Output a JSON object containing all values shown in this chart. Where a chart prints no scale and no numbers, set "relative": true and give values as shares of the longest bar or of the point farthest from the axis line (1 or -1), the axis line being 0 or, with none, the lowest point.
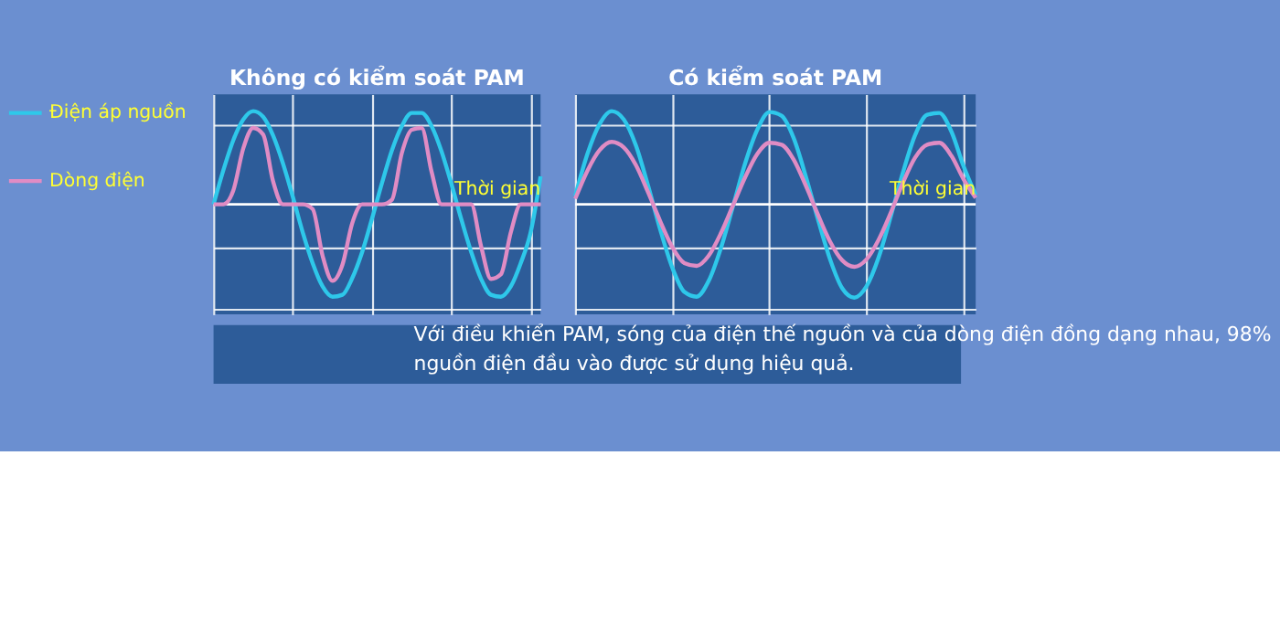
{
  "chart_data": [
    {
      "type": "line",
      "title": "Không có kiểm soát PAM",
      "xlabel": "Thời gian",
      "relative": true,
      "grid": true,
      "legend": "left",
      "categories": [
        null,
        null,
        null,
        null,
        null,
        null,
        null,
        null,
        null,
        null,
        null,
        null,
        null,
        null,
        null,
        null,
        null,
        null,
        null,
        null,
        null,
        null,
        null,
        null,
        null,
        null,
        null,
        null,
        null,
        null,
        null,
        null,
        null,
        null
      ],
      "series": [
        {
          "name": "Điện áp nguồn",
          "color": "#2ec8ea",
          "values": [
            0,
            0.37,
            0.69,
            0.91,
            1.0,
            0.94,
            0.74,
            0.44,
            0.08,
            -0.3,
            -0.63,
            -0.88,
            -0.99,
            -0.97,
            -0.79,
            -0.51,
            -0.15,
            0.23,
            0.58,
            0.84,
            0.98,
            0.98,
            0.84,
            0.57,
            0.22,
            -0.16,
            -0.51,
            -0.8,
            -0.97,
            -0.99,
            -0.88,
            -0.63,
            -0.3,
            0.3
          ]
        },
        {
          "name": "Dòng điện",
          "color": "#e08cc4",
          "values": [
            0,
            0,
            0.15,
            0.6,
            0.82,
            0.75,
            0.25,
            0,
            0,
            0,
            -0.05,
            -0.55,
            -0.82,
            -0.65,
            -0.2,
            0,
            0,
            0,
            0.05,
            0.55,
            0.8,
            0.82,
            0.35,
            0,
            0,
            0,
            0,
            -0.45,
            -0.8,
            -0.75,
            -0.3,
            0,
            0,
            0
          ]
        }
      ],
      "annotations": [
        "Với điều khiển PAM, sóng của điện thế nguồn và của dòng điện đồng dạng nhau, 98% nguồn điện đầu vào được sử dụng hiệu quả."
      ]
    },
    {
      "type": "line",
      "title": "Có kiểm soát PAM",
      "xlabel": "Thời gian",
      "relative": true,
      "grid": true,
      "categories": [
        null,
        null,
        null,
        null,
        null,
        null,
        null,
        null,
        null,
        null,
        null,
        null,
        null,
        null,
        null,
        null,
        null,
        null,
        null,
        null,
        null,
        null,
        null,
        null,
        null,
        null,
        null,
        null,
        null,
        null,
        null,
        null,
        null,
        null
      ],
      "series": [
        {
          "color": "#2ec8ea",
          "values": [
            0.09,
            0.54,
            0.86,
            1.0,
            0.91,
            0.63,
            0.2,
            -0.27,
            -0.68,
            -0.94,
            -0.99,
            -0.82,
            -0.47,
            -0.02,
            0.44,
            0.8,
            0.99,
            0.95,
            0.71,
            0.3,
            -0.16,
            -0.59,
            -0.9,
            -1.0,
            -0.88,
            -0.57,
            -0.13,
            0.34,
            0.74,
            0.96,
            0.98,
            0.78,
            0.41,
            0.1
          ]
        },
        {
          "color": "#e08cc4",
          "values": [
            0.06,
            0.36,
            0.58,
            0.67,
            0.61,
            0.42,
            0.13,
            -0.18,
            -0.46,
            -0.63,
            -0.66,
            -0.55,
            -0.31,
            -0.01,
            0.29,
            0.54,
            0.66,
            0.64,
            0.48,
            0.2,
            -0.11,
            -0.4,
            -0.6,
            -0.67,
            -0.59,
            -0.38,
            -0.09,
            0.23,
            0.5,
            0.64,
            0.66,
            0.52,
            0.27,
            0.07
          ]
        }
      ]
    }
  ]
}
